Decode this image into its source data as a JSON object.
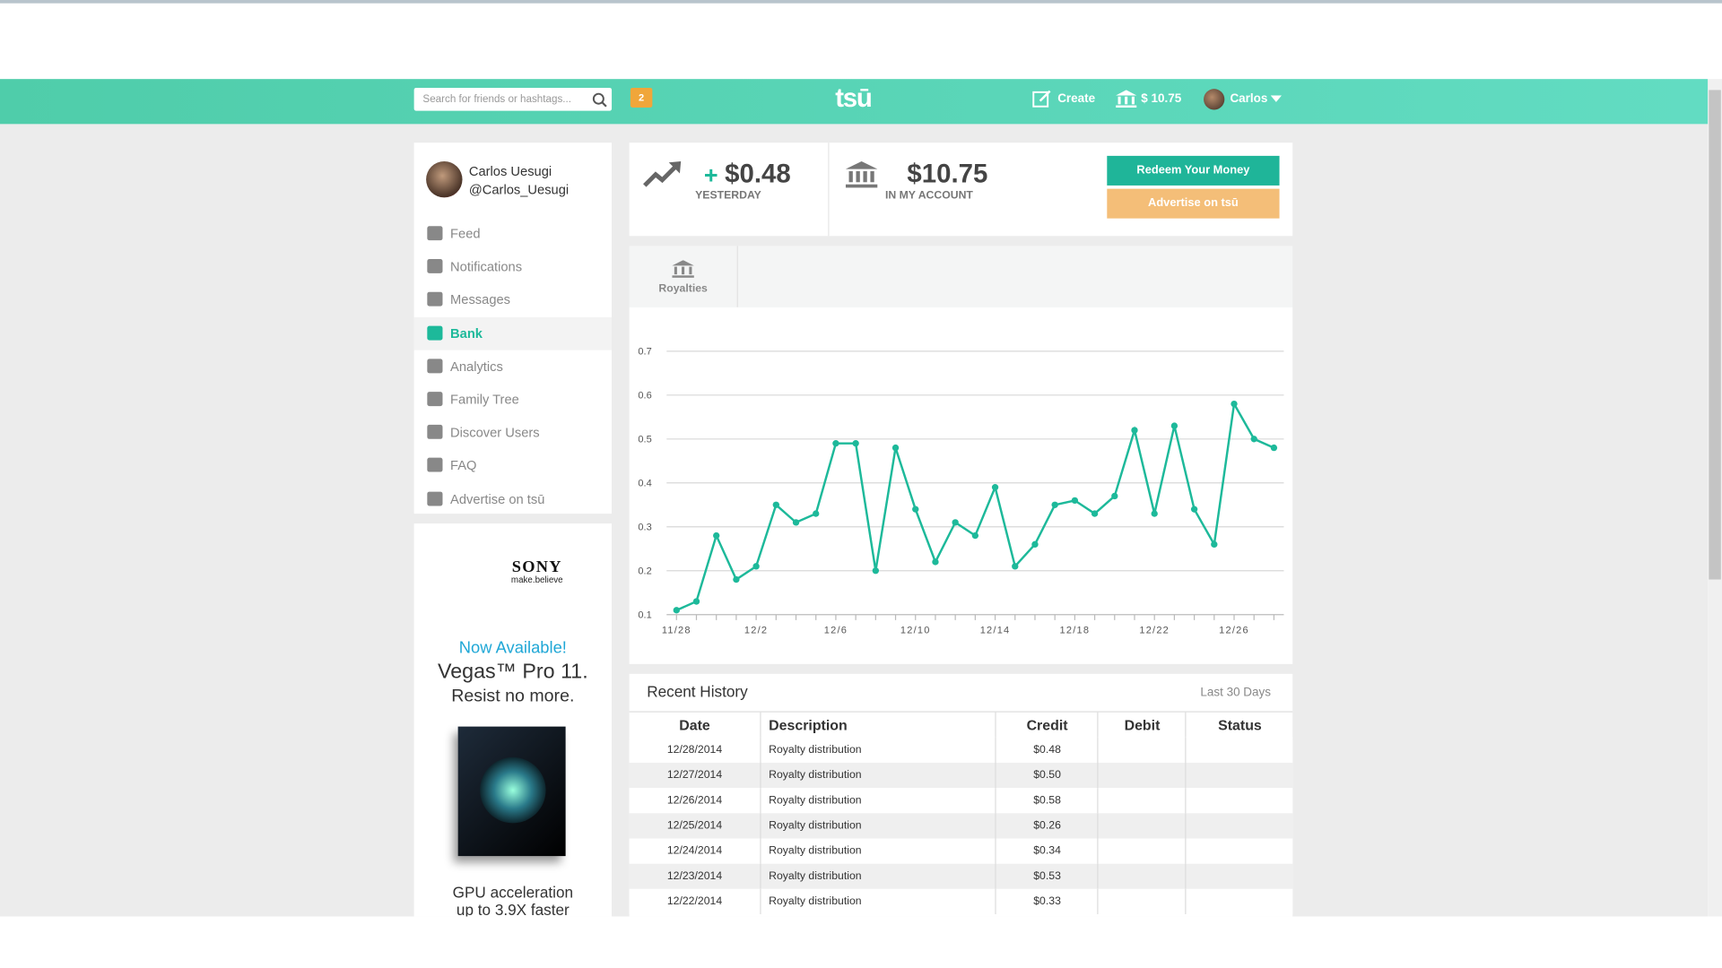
{
  "header": {
    "search_placeholder": "Search for friends or hashtags...",
    "notification_count": "2",
    "logo": "tsū",
    "create": "Create",
    "balance": "$ 10.75",
    "user": "Carlos"
  },
  "profile": {
    "name": "Carlos Uesugi",
    "handle": "@Carlos_Uesugi"
  },
  "nav": [
    {
      "label": "Feed"
    },
    {
      "label": "Notifications"
    },
    {
      "label": "Messages"
    },
    {
      "label": "Bank",
      "active": true
    },
    {
      "label": "Analytics"
    },
    {
      "label": "Family Tree"
    },
    {
      "label": "Discover Users"
    },
    {
      "label": "FAQ"
    },
    {
      "label": "Advertise on tsū"
    }
  ],
  "ad": {
    "brand": "SONY",
    "tagline": "make.believe",
    "headline": "Now Available!",
    "product": "Vegas™ Pro 11.",
    "slogan": "Resist no more.",
    "footer_line1": "GPU acceleration",
    "footer_line2": "up to 3.9X faster"
  },
  "stats": {
    "yesterday_sign": "+",
    "yesterday_amount": "$0.48",
    "yesterday_label": "YESTERDAY",
    "account_amount": "$10.75",
    "account_label": "IN MY ACCOUNT"
  },
  "buttons": {
    "redeem": "Redeem Your Money",
    "advertise": "Advertise on tsū"
  },
  "tabs": [
    "Royalties"
  ],
  "chart_data": {
    "type": "line",
    "categories": [
      "11/28",
      null,
      null,
      null,
      "12/2",
      null,
      null,
      null,
      "12/6",
      null,
      null,
      null,
      "12/10",
      null,
      null,
      null,
      "12/14",
      null,
      null,
      null,
      "12/18",
      null,
      null,
      null,
      "12/22",
      null,
      null,
      null,
      "12/26",
      null,
      null
    ],
    "values": [
      0.11,
      0.13,
      0.28,
      0.18,
      0.21,
      0.35,
      0.31,
      0.33,
      0.49,
      0.49,
      0.2,
      0.48,
      0.34,
      0.22,
      0.31,
      0.28,
      0.39,
      0.21,
      0.26,
      0.35,
      0.36,
      0.33,
      0.37,
      0.52,
      0.33,
      0.53,
      0.34,
      0.26,
      0.58,
      0.5,
      0.48
    ],
    "color": "#1db99a",
    "ylim": [
      0.1,
      0.7
    ],
    "yticks": [
      0.1,
      0.2,
      0.3,
      0.4,
      0.5,
      0.6,
      0.7
    ],
    "grid": true
  },
  "history": {
    "title": "Recent History",
    "range": "Last 30 Days",
    "columns": [
      "Date",
      "Description",
      "Credit",
      "Debit",
      "Status"
    ],
    "rows": [
      {
        "date": "12/28/2014",
        "description": "Royalty distribution",
        "credit": "$0.48"
      },
      {
        "date": "12/27/2014",
        "description": "Royalty distribution",
        "credit": "$0.50"
      },
      {
        "date": "12/26/2014",
        "description": "Royalty distribution",
        "credit": "$0.58"
      },
      {
        "date": "12/25/2014",
        "description": "Royalty distribution",
        "credit": "$0.26"
      },
      {
        "date": "12/24/2014",
        "description": "Royalty distribution",
        "credit": "$0.34"
      },
      {
        "date": "12/23/2014",
        "description": "Royalty distribution",
        "credit": "$0.53"
      },
      {
        "date": "12/22/2014",
        "description": "Royalty distribution",
        "credit": "$0.33"
      }
    ]
  }
}
